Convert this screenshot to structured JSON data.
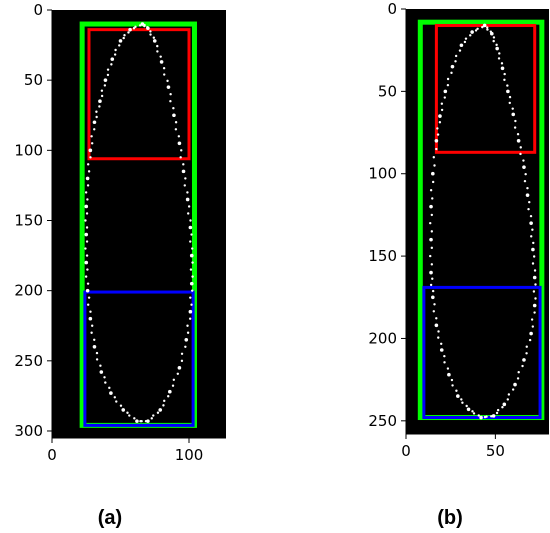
{
  "chart_data": [
    {
      "type": "scatter",
      "caption": "(a)",
      "xlim": [
        0,
        127
      ],
      "ylim": [
        305,
        0
      ],
      "xticks": [
        0,
        100
      ],
      "yticks": [
        0,
        50,
        100,
        150,
        200,
        250,
        300
      ],
      "background": "#000000",
      "grid": false,
      "boxes": [
        {
          "role": "green-outer",
          "color": "#00ff00",
          "x0": 22,
          "x1": 104,
          "y0": 10,
          "y1": 296
        },
        {
          "role": "red-top",
          "color": "#ff0000",
          "x0": 27,
          "x1": 100,
          "y0": 14,
          "y1": 106
        },
        {
          "role": "blue-bottom",
          "color": "#0000ff",
          "x0": 24,
          "x1": 103,
          "y0": 201,
          "y1": 296
        }
      ],
      "contour": [
        [
          66,
          10
        ],
        [
          57,
          14
        ],
        [
          50,
          22
        ],
        [
          44,
          35
        ],
        [
          39,
          50
        ],
        [
          35,
          65
        ],
        [
          31,
          80
        ],
        [
          28,
          100
        ],
        [
          26,
          120
        ],
        [
          25,
          140
        ],
        [
          25,
          160
        ],
        [
          25,
          180
        ],
        [
          26,
          200
        ],
        [
          28,
          220
        ],
        [
          31,
          240
        ],
        [
          36,
          258
        ],
        [
          43,
          273
        ],
        [
          52,
          285
        ],
        [
          62,
          293
        ],
        [
          70,
          293
        ],
        [
          79,
          285
        ],
        [
          86,
          272
        ],
        [
          93,
          255
        ],
        [
          98,
          235
        ],
        [
          101,
          215
        ],
        [
          102,
          195
        ],
        [
          102,
          175
        ],
        [
          101,
          155
        ],
        [
          99,
          135
        ],
        [
          96,
          115
        ],
        [
          93,
          95
        ],
        [
          89,
          75
        ],
        [
          85,
          55
        ],
        [
          80,
          37
        ],
        [
          75,
          22
        ],
        [
          70,
          13
        ]
      ]
    },
    {
      "type": "scatter",
      "caption": "(b)",
      "xlim": [
        0,
        80
      ],
      "ylim": [
        258,
        0
      ],
      "xticks": [
        0,
        50
      ],
      "yticks": [
        0,
        50,
        100,
        150,
        200,
        250
      ],
      "background": "#000000",
      "grid": false,
      "boxes": [
        {
          "role": "green-outer",
          "color": "#00ff00",
          "x0": 8,
          "x1": 76,
          "y0": 8,
          "y1": 248
        },
        {
          "role": "red-top",
          "color": "#ff0000",
          "x0": 17,
          "x1": 72,
          "y0": 10,
          "y1": 87
        },
        {
          "role": "blue-bottom",
          "color": "#0000ff",
          "x0": 10,
          "x1": 75,
          "y0": 169,
          "y1": 248
        }
      ],
      "contour": [
        [
          44,
          10
        ],
        [
          37,
          14
        ],
        [
          31,
          22
        ],
        [
          26,
          35
        ],
        [
          22,
          50
        ],
        [
          19,
          65
        ],
        [
          17,
          80
        ],
        [
          15,
          100
        ],
        [
          14,
          120
        ],
        [
          14,
          140
        ],
        [
          14,
          160
        ],
        [
          15,
          175
        ],
        [
          17,
          192
        ],
        [
          20,
          207
        ],
        [
          24,
          222
        ],
        [
          29,
          235
        ],
        [
          35,
          243
        ],
        [
          42,
          248
        ],
        [
          49,
          247
        ],
        [
          55,
          240
        ],
        [
          61,
          228
        ],
        [
          66,
          213
        ],
        [
          70,
          197
        ],
        [
          72,
          180
        ],
        [
          72,
          163
        ],
        [
          71,
          146
        ],
        [
          70,
          130
        ],
        [
          68,
          113
        ],
        [
          66,
          96
        ],
        [
          63,
          80
        ],
        [
          60,
          64
        ],
        [
          57,
          50
        ],
        [
          54,
          36
        ],
        [
          51,
          24
        ],
        [
          48,
          15
        ]
      ]
    }
  ]
}
